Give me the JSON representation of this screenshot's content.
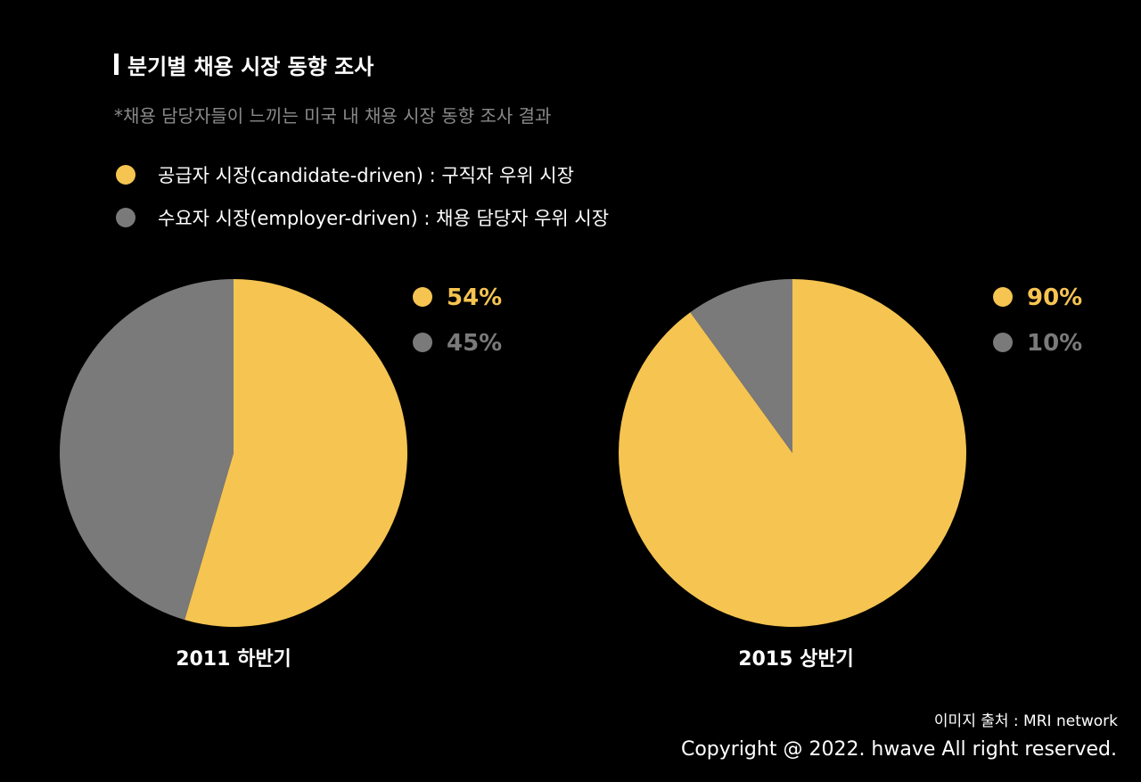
{
  "title": "분기별 채용 시장 동향 조사",
  "subtitle": "*채용 담당자들이 느끼는 미국 내 채용 시장 동향 조사 결과",
  "legend": [
    {
      "label": "공급자 시장(candidate-driven) : 구직자 우위 시장",
      "color": "#f5c451"
    },
    {
      "label": "수요자 시장(employer-driven) : 채용 담당자 우위 시장",
      "color": "#7a7a7a"
    }
  ],
  "chart_data": [
    {
      "type": "pie",
      "title": "2011 하반기",
      "slices": [
        {
          "name": "공급자 시장(candidate-driven) : 구직자 우위 시장",
          "value": 54,
          "label": "54%",
          "color": "#f5c451"
        },
        {
          "name": "수요자 시장(employer-driven) : 채용 담당자 우위 시장",
          "value": 45,
          "label": "45%",
          "color": "#7a7a7a"
        }
      ],
      "legend_position": "top-right"
    },
    {
      "type": "pie",
      "title": "2015 상반기",
      "slices": [
        {
          "name": "공급자 시장(candidate-driven) : 구직자 우위 시장",
          "value": 90,
          "label": "90%",
          "color": "#f5c451"
        },
        {
          "name": "수요자 시장(employer-driven) : 채용 담당자 우위 시장",
          "value": 10,
          "label": "10%",
          "color": "#7a7a7a"
        }
      ],
      "legend_position": "top-right"
    }
  ],
  "footer": {
    "source": "이미지 출처 : MRI network",
    "copyright": "Copyright @ 2022. hwave All right reserved."
  }
}
